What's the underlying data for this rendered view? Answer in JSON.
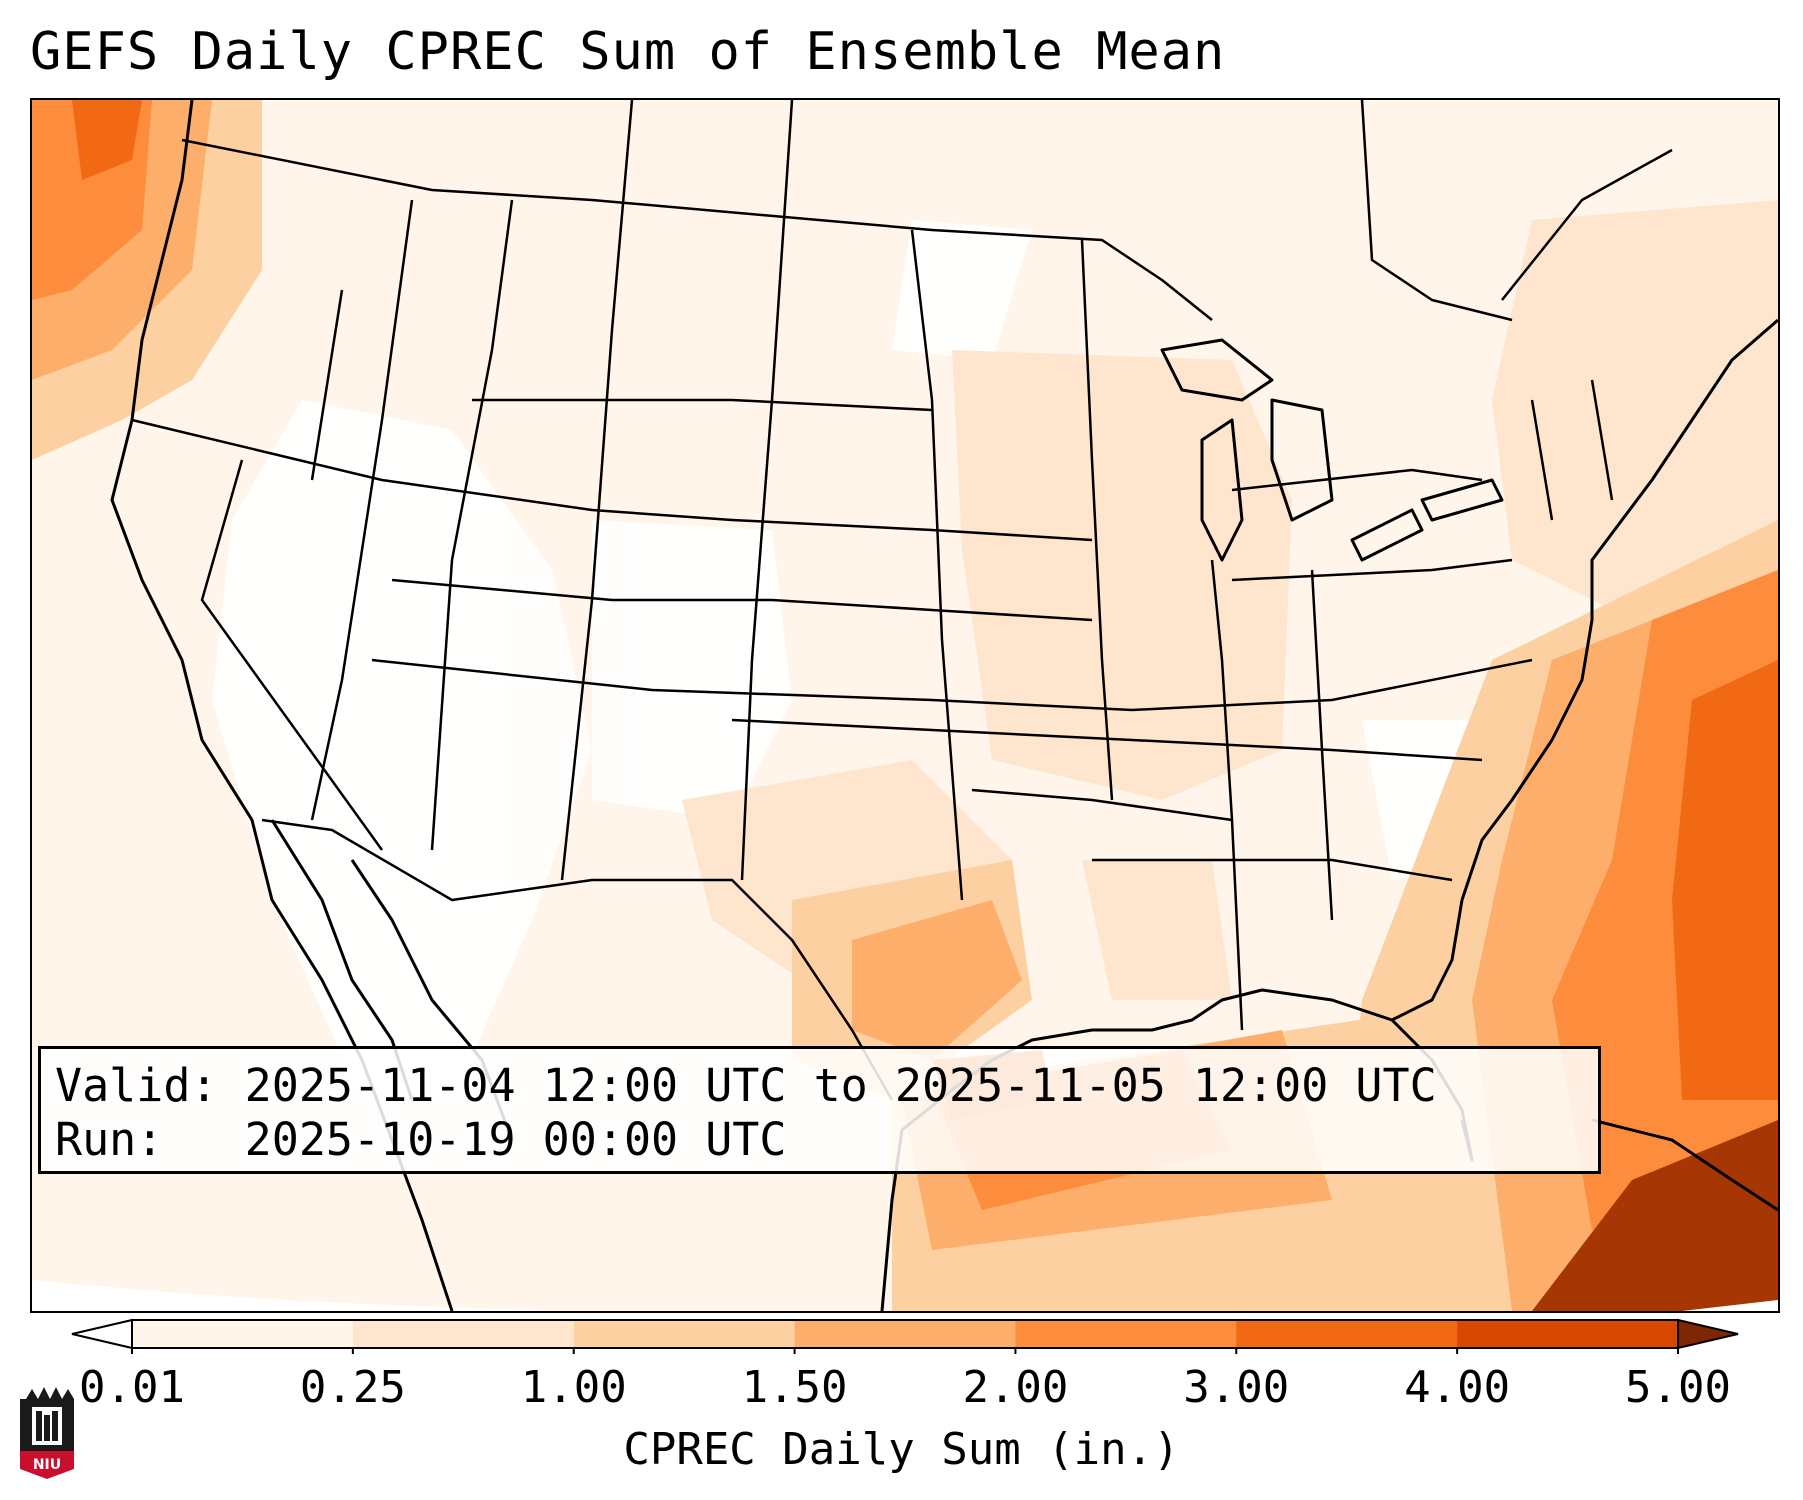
{
  "title": "GEFS Daily CPREC Sum of Ensemble Mean",
  "info": {
    "valid_line": "Valid: 2025-11-04 12:00 UTC to 2025-11-05 12:00 UTC",
    "run_line": "Run:   2025-10-19 00:00 UTC"
  },
  "colorbar": {
    "title": "CPREC Daily Sum (in.)",
    "ticks": [
      "0.01",
      "0.25",
      "1.00",
      "1.50",
      "2.00",
      "3.00",
      "4.00",
      "5.00"
    ],
    "colors": [
      "#fff5eb",
      "#fee6ce",
      "#fdd0a2",
      "#fdae6b",
      "#fd8d3c",
      "#f16913",
      "#d94801",
      "#8c2d04"
    ],
    "extend_low_color": "#ffffff",
    "extend_high_color": "#7f2704"
  },
  "logo": {
    "text": "NIU",
    "colors": {
      "red": "#c8102e",
      "black": "#1a1a1a"
    }
  },
  "map": {
    "projection": "lambert-conformal",
    "region": "conterminous-us",
    "features": [
      "coastlines",
      "country-borders",
      "state-borders"
    ]
  }
}
